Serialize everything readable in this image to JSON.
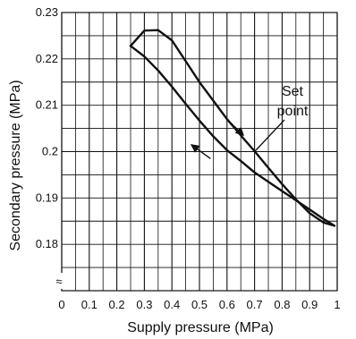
{
  "chart_data": {
    "type": "line",
    "title": "",
    "xlabel": "Supply pressure (MPa)",
    "ylabel": "Secondary pressure (MPa)",
    "xlim": [
      0,
      1
    ],
    "ylim": [
      0.17,
      0.23
    ],
    "grid": true,
    "x_ticks": [
      0,
      0.1,
      0.2,
      0.3,
      0.4,
      0.5,
      0.6,
      0.7,
      0.8,
      0.9,
      1
    ],
    "x_tick_labels": [
      "0",
      "0.1",
      "0.2",
      "0.3",
      "0.4",
      "0.5",
      "0.6",
      "0.7",
      "0.8",
      "0.9",
      "1"
    ],
    "y_ticks": [
      0.18,
      0.19,
      0.2,
      0.21,
      0.22,
      0.23
    ],
    "y_tick_labels": [
      "0.18",
      "0.19",
      "0.2",
      "0.21",
      "0.22",
      "0.23"
    ],
    "axis_break_symbol": "≈",
    "series": [
      {
        "x": [
          0.25,
          0.3,
          0.35,
          0.4,
          0.45,
          0.5,
          0.55,
          0.6,
          0.65,
          0.7,
          0.75,
          0.8,
          0.85,
          0.9,
          0.95,
          0.99
        ],
        "y": [
          0.2228,
          0.2261,
          0.2262,
          0.224,
          0.2195,
          0.215,
          0.211,
          0.207,
          0.2035,
          0.2001,
          0.1965,
          0.193,
          0.1897,
          0.1867,
          0.1847,
          0.184
        ]
      },
      {
        "x": [
          0.99,
          0.95,
          0.9,
          0.85,
          0.8,
          0.75,
          0.7,
          0.65,
          0.6,
          0.55,
          0.5,
          0.45,
          0.4,
          0.35,
          0.3,
          0.25
        ],
        "y": [
          0.184,
          0.1855,
          0.1875,
          0.1895,
          0.1915,
          0.1935,
          0.1955,
          0.198,
          0.2003,
          0.2033,
          0.2067,
          0.2103,
          0.214,
          0.2175,
          0.2205,
          0.2228
        ]
      }
    ],
    "annotations": {
      "set_point_lines": [
        "Set",
        "point"
      ],
      "set_point": {
        "x": 0.7,
        "y": 0.2
      },
      "arrow_upper": {
        "from": [
          0.6,
          0.207
        ],
        "to": [
          0.66,
          0.2035
        ]
      },
      "arrow_lower": {
        "from": [
          0.54,
          0.1985
        ],
        "to": [
          0.47,
          0.2015
        ]
      }
    }
  }
}
